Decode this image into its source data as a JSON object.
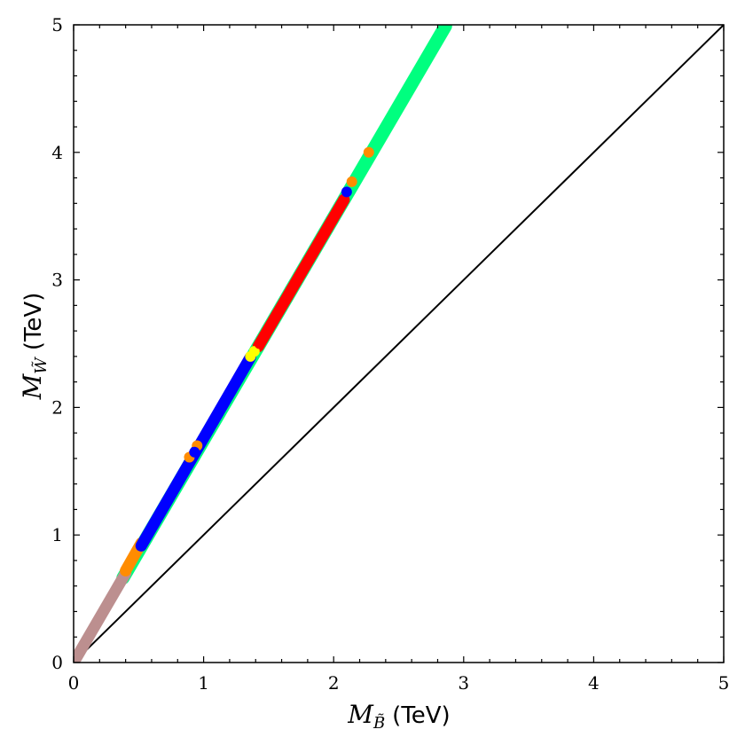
{
  "chart_data": {
    "type": "scatter",
    "title": "",
    "xlabel": {
      "symbol": "M",
      "sub": "B̃",
      "unit": "(TeV)"
    },
    "ylabel": {
      "symbol": "M",
      "sub": "W̃",
      "unit": "(TeV)"
    },
    "xlim": [
      0,
      5
    ],
    "ylim": [
      0,
      5
    ],
    "x_ticks": [
      "0",
      "1",
      "2",
      "3",
      "4",
      "5"
    ],
    "y_ticks": [
      "0",
      "1",
      "2",
      "3",
      "4",
      "5"
    ],
    "grid": false,
    "legend": "none",
    "reference_line": {
      "x": [
        0,
        5
      ],
      "y": [
        0,
        5
      ],
      "color": "#000000"
    },
    "bands": [
      {
        "color": "#00ff7f",
        "x": [
          0.38,
          2.86
        ],
        "slope": 1.745,
        "intercept": 0.0
      },
      {
        "color": "#bc8f8f",
        "x": [
          0.0,
          0.4
        ],
        "slope": 1.75,
        "intercept": 0.0
      },
      {
        "color": "#ff8c00",
        "x": [
          0.4,
          0.52
        ],
        "slope": 1.8,
        "intercept": 0.0
      },
      {
        "color": "#0000ff",
        "x": [
          0.52,
          1.36
        ],
        "slope": 1.76,
        "intercept": 0.0
      },
      {
        "color": "#ff0000",
        "x": [
          1.42,
          2.08
        ],
        "slope": 1.745,
        "intercept": 0.0
      }
    ],
    "points": [
      {
        "color": "#ffff00",
        "x": 1.36,
        "y": 2.4
      },
      {
        "color": "#ffff00",
        "x": 1.39,
        "y": 2.44
      },
      {
        "color": "#ff8c00",
        "x": 0.89,
        "y": 1.61
      },
      {
        "color": "#ff8c00",
        "x": 0.95,
        "y": 1.7
      },
      {
        "color": "#0000ff",
        "x": 0.93,
        "y": 1.65
      },
      {
        "color": "#ff8c00",
        "x": 2.14,
        "y": 3.77
      },
      {
        "color": "#ff8c00",
        "x": 2.27,
        "y": 4.0
      },
      {
        "color": "#0000ff",
        "x": 2.1,
        "y": 3.69
      },
      {
        "color": "#ff0000",
        "x": 1.43,
        "y": 2.5
      },
      {
        "color": "#ff8c00",
        "x": 0.42,
        "y": 0.75
      }
    ]
  }
}
